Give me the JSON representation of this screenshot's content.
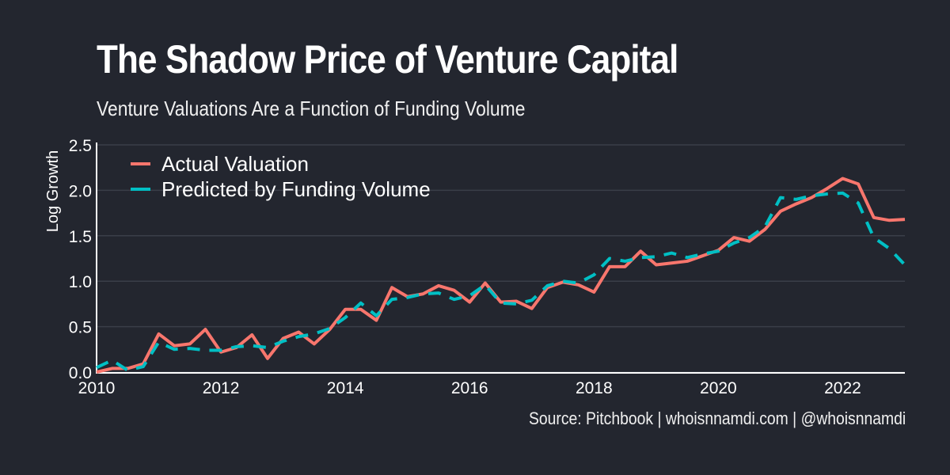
{
  "title": "The Shadow Price of Venture Capital",
  "subtitle": "Venture Valuations Are a Function of Funding Volume",
  "caption": "Source: Pitchbook | whoisnnamdi.com | @whoisnnamdi",
  "chart_data": {
    "type": "line",
    "title": "The Shadow Price of Venture Capital",
    "subtitle": "Venture Valuations Are a Function of Funding Volume",
    "xlabel": "",
    "ylabel": "Log Growth",
    "xlim": [
      2010,
      2023
    ],
    "ylim": [
      0,
      2.5
    ],
    "xticks": [
      "2010",
      "2012",
      "2014",
      "2016",
      "2018",
      "2020",
      "2022"
    ],
    "yticks": [
      "0.0",
      "0.5",
      "1.0",
      "1.5",
      "2.0",
      "2.5"
    ],
    "grid": true,
    "legend_position": "top-left",
    "x_start": 2010,
    "x_step": 0.25,
    "series": [
      {
        "name": "Actual Valuation",
        "color": "#f8766d",
        "style": "solid",
        "values": [
          0.0,
          0.04,
          0.04,
          0.09,
          0.42,
          0.29,
          0.31,
          0.47,
          0.22,
          0.27,
          0.41,
          0.15,
          0.37,
          0.44,
          0.31,
          0.47,
          0.69,
          0.69,
          0.57,
          0.93,
          0.83,
          0.86,
          0.95,
          0.9,
          0.77,
          0.98,
          0.77,
          0.78,
          0.7,
          0.93,
          0.99,
          0.96,
          0.88,
          1.16,
          1.16,
          1.33,
          1.18,
          1.2,
          1.22,
          1.28,
          1.34,
          1.48,
          1.44,
          1.57,
          1.77,
          1.85,
          1.92,
          2.02,
          2.13,
          2.07,
          1.7,
          1.67,
          1.68
        ]
      },
      {
        "name": "Predicted by Funding Volume",
        "color": "#00bfc4",
        "style": "dashed",
        "values": [
          0.05,
          0.13,
          0.02,
          0.06,
          0.33,
          0.25,
          0.26,
          0.24,
          0.24,
          0.28,
          0.29,
          0.27,
          0.34,
          0.39,
          0.42,
          0.48,
          0.6,
          0.76,
          0.62,
          0.8,
          0.82,
          0.86,
          0.87,
          0.8,
          0.84,
          0.96,
          0.76,
          0.75,
          0.79,
          0.95,
          1.0,
          0.98,
          1.07,
          1.25,
          1.22,
          1.26,
          1.27,
          1.31,
          1.26,
          1.3,
          1.33,
          1.42,
          1.48,
          1.6,
          1.92,
          1.9,
          1.94,
          1.96,
          1.97,
          1.86,
          1.48,
          1.36,
          1.18
        ]
      }
    ]
  }
}
